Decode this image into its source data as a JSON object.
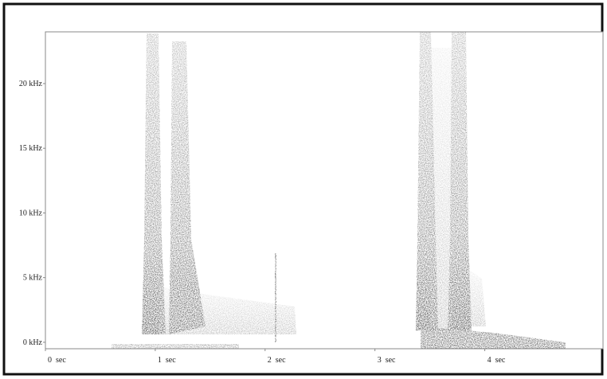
{
  "chart_data": {
    "type": "spectrogram",
    "xlim": [
      0,
      5.04
    ],
    "xticks": [
      {
        "value": 0,
        "label": "0  sec"
      },
      {
        "value": 1,
        "label": "1  sec"
      },
      {
        "value": 2,
        "label": "2  sec"
      },
      {
        "value": 3,
        "label": "3  sec"
      },
      {
        "value": 4,
        "label": "4  sec"
      }
    ],
    "ylim": [
      -0.5,
      24
    ],
    "yticks": [
      {
        "value": 0,
        "label": "0 kHz"
      },
      {
        "value": 5,
        "label": "5 kHz"
      },
      {
        "value": 10,
        "label": "10 kHz"
      },
      {
        "value": 15,
        "label": "15 kHz"
      },
      {
        "value": 20,
        "label": "20 kHz"
      }
    ]
  }
}
